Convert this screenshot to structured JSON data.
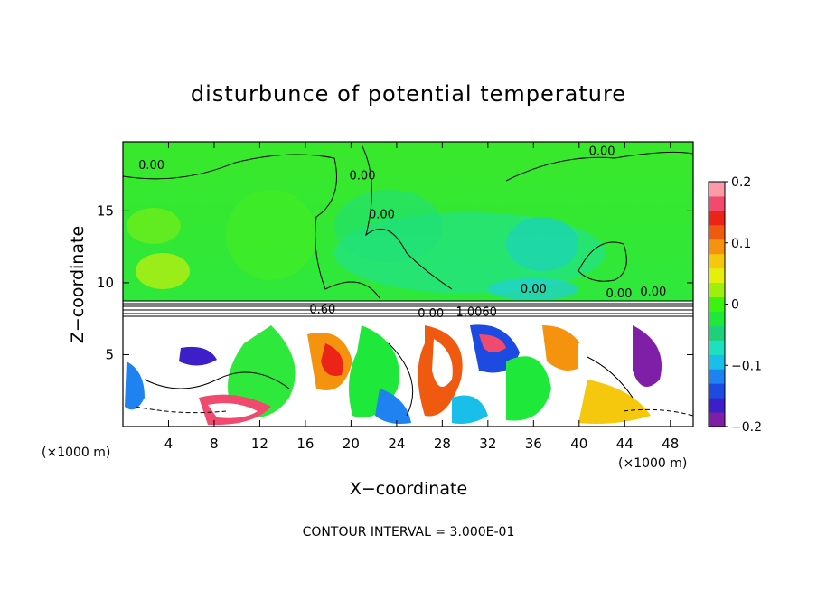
{
  "chart_data": {
    "type": "heatmap",
    "title": "disturbunce of potential temperature",
    "xlabel": "X−coordinate",
    "ylabel": "Z−coordinate",
    "x_unit": "(×1000 m)",
    "x_unit_right": "(×1000 m)",
    "xlim": [
      0,
      50
    ],
    "ylim": [
      0,
      19.8
    ],
    "x_ticks": [
      4,
      8,
      12,
      16,
      20,
      24,
      28,
      32,
      36,
      40,
      44,
      48
    ],
    "y_ticks": [
      5,
      10,
      15
    ],
    "colorbar": {
      "range": [
        -0.2,
        0.2
      ],
      "ticks": [
        0.2,
        0.1,
        0,
        -0.1,
        -0.2
      ],
      "tick_labels": [
        "0.2",
        "0.1",
        "0",
        "−0.1",
        "−0.2"
      ],
      "colors": [
        "#7f1fa8",
        "#3c1fc8",
        "#1d4ae0",
        "#1e82f0",
        "#19bfe8",
        "#1de0c0",
        "#1fd07a",
        "#1ee83a",
        "#3cf20f",
        "#9ef00c",
        "#e6ef0c",
        "#f5c80e",
        "#f5930e",
        "#f05a10",
        "#ec2418",
        "#f04a6e",
        "#fc9aaa"
      ]
    },
    "regions": [
      {
        "z_range": [
          8.9,
          19.8
        ],
        "value_range": [
          -0.05,
          0.02
        ],
        "description_value": 0.0
      },
      {
        "z_range": [
          7.6,
          8.9
        ],
        "value": 0.6
      },
      {
        "z_range": [
          0,
          7.6
        ],
        "value_range": [
          -0.2,
          0.2
        ]
      }
    ],
    "contour_labels": [
      {
        "text": "0.00",
        "x": 2.5,
        "z": 17.9
      },
      {
        "text": "0.00",
        "x": 42,
        "z": 18.9
      },
      {
        "text": "0.00",
        "x": 21,
        "z": 17.2
      },
      {
        "text": "0.00",
        "x": 22.7,
        "z": 14.5
      },
      {
        "text": "0.00",
        "x": 36,
        "z": 9.3
      },
      {
        "text": "0.60",
        "x": 17.5,
        "z": 7.9
      },
      {
        "text": "0.00",
        "x": 27,
        "z": 7.6
      },
      {
        "text": "1.0060",
        "x": 31,
        "z": 7.7
      },
      {
        "text": "0.00",
        "x": 43.5,
        "z": 9.0
      },
      {
        "text": "0.00",
        "x": 46.5,
        "z": 9.1
      }
    ],
    "contour_interval": "CONTOUR INTERVAL = 3.000E-01"
  }
}
